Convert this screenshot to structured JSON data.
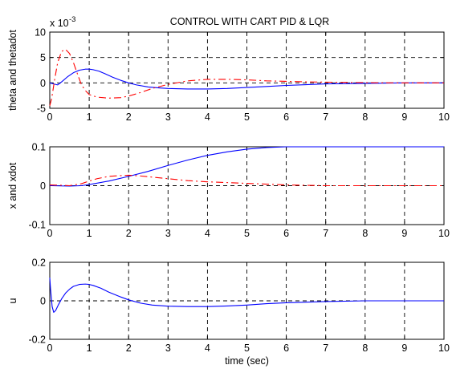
{
  "title": "CONTROL WITH CART PID & LQR",
  "colors": {
    "solid_series": "#0000ff",
    "dashed_series": "#ff0000",
    "grid": "#000000",
    "background": "#ffffff"
  },
  "chart_data": [
    {
      "type": "line",
      "title": "CONTROL WITH CART PID & LQR",
      "xlabel": "",
      "ylabel": "theta and thetadot",
      "exponent_label": "x 10",
      "exponent_power": "-3",
      "xlim": [
        0,
        10
      ],
      "ylim": [
        -5,
        10
      ],
      "xticks": [
        "0",
        "1",
        "2",
        "3",
        "4",
        "5",
        "6",
        "7",
        "8",
        "9",
        "10"
      ],
      "yticks": [
        "-5",
        "0",
        "5",
        "10"
      ],
      "grid": true,
      "series": [
        {
          "color": "#0000ff",
          "style": "solid",
          "x": [
            0,
            0.1,
            0.2,
            0.3,
            0.45,
            0.6,
            0.75,
            0.9,
            1.0,
            1.1,
            1.25,
            1.4,
            1.6,
            1.8,
            2.0,
            2.2,
            2.5,
            2.8,
            3.0,
            3.5,
            4.0,
            4.5,
            5.0,
            5.5,
            6.0,
            6.5,
            7.0,
            8.0,
            9.0,
            10.0
          ],
          "y": [
            0,
            -0.2,
            -0.4,
            0.2,
            1.2,
            2.0,
            2.5,
            2.7,
            2.7,
            2.6,
            2.3,
            1.8,
            1.1,
            0.5,
            0.0,
            -0.4,
            -0.8,
            -1.0,
            -1.1,
            -1.2,
            -1.2,
            -1.1,
            -0.9,
            -0.7,
            -0.5,
            -0.35,
            -0.2,
            -0.1,
            0,
            0
          ]
        },
        {
          "color": "#ff0000",
          "style": "dashed",
          "x": [
            0,
            0.05,
            0.12,
            0.2,
            0.3,
            0.4,
            0.5,
            0.6,
            0.7,
            0.8,
            0.9,
            1.0,
            1.2,
            1.5,
            1.8,
            2.0,
            2.3,
            2.6,
            3.0,
            3.5,
            4.0,
            4.5,
            5.0,
            5.5,
            6.0,
            6.5,
            7.0,
            7.5,
            8.0,
            9.0,
            10.0
          ],
          "y": [
            -4.5,
            -3.0,
            0.5,
            4.0,
            6.2,
            6.6,
            5.8,
            4.0,
            1.8,
            -0.3,
            -1.5,
            -2.3,
            -2.8,
            -3.0,
            -2.9,
            -2.6,
            -1.9,
            -1.1,
            -0.3,
            0.4,
            0.7,
            0.7,
            0.6,
            0.4,
            0.3,
            0.2,
            0.15,
            0.1,
            0.05,
            0,
            0
          ]
        }
      ]
    },
    {
      "type": "line",
      "xlabel": "",
      "ylabel": "x and xdot",
      "xlim": [
        0,
        10
      ],
      "ylim": [
        -0.1,
        0.1
      ],
      "xticks": [
        "0",
        "1",
        "2",
        "3",
        "4",
        "5",
        "6",
        "7",
        "8",
        "9",
        "10"
      ],
      "yticks": [
        "-0.1",
        "0",
        "0.1"
      ],
      "grid": true,
      "series": [
        {
          "color": "#0000ff",
          "style": "solid",
          "x": [
            0,
            0.5,
            0.8,
            1.0,
            1.5,
            2.0,
            2.5,
            3.0,
            3.5,
            4.0,
            4.5,
            5.0,
            5.5,
            6.0,
            6.5,
            7.0,
            8.0,
            9.0,
            10.0
          ],
          "y": [
            0,
            -0.001,
            0.0,
            0.003,
            0.012,
            0.024,
            0.037,
            0.052,
            0.066,
            0.078,
            0.087,
            0.094,
            0.098,
            0.1,
            0.1,
            0.1,
            0.1,
            0.1,
            0.1
          ]
        },
        {
          "color": "#ff0000",
          "style": "dashed",
          "x": [
            0,
            0.3,
            0.5,
            0.8,
            1.0,
            1.2,
            1.5,
            1.8,
            2.0,
            2.3,
            2.6,
            3.0,
            3.5,
            4.0,
            4.5,
            5.0,
            5.5,
            6.0,
            6.5,
            7.0,
            8.0,
            9.0,
            10.0
          ],
          "y": [
            0.002,
            0.001,
            0.0,
            0.005,
            0.012,
            0.018,
            0.024,
            0.026,
            0.027,
            0.025,
            0.022,
            0.018,
            0.013,
            0.01,
            0.008,
            0.006,
            0.004,
            0.002,
            0.001,
            0,
            0,
            0,
            0
          ]
        }
      ]
    },
    {
      "type": "line",
      "xlabel": "time (sec)",
      "ylabel": "u",
      "xlim": [
        0,
        10
      ],
      "ylim": [
        -0.2,
        0.2
      ],
      "xticks": [
        "0",
        "1",
        "2",
        "3",
        "4",
        "5",
        "6",
        "7",
        "8",
        "9",
        "10"
      ],
      "yticks": [
        "-0.2",
        "0",
        "0.2"
      ],
      "grid": true,
      "series": [
        {
          "color": "#0000ff",
          "style": "solid",
          "x": [
            0,
            0.02,
            0.06,
            0.1,
            0.15,
            0.22,
            0.3,
            0.4,
            0.5,
            0.6,
            0.75,
            0.9,
            1.0,
            1.1,
            1.3,
            1.5,
            1.8,
            2.0,
            2.3,
            2.6,
            3.0,
            3.5,
            4.0,
            4.5,
            5.0,
            5.5,
            6.0,
            7.0,
            8.0,
            9.0,
            10.0
          ],
          "y": [
            0.12,
            0.06,
            -0.03,
            -0.06,
            -0.05,
            -0.02,
            0.01,
            0.04,
            0.06,
            0.075,
            0.085,
            0.087,
            0.085,
            0.08,
            0.065,
            0.045,
            0.02,
            0.005,
            -0.012,
            -0.022,
            -0.028,
            -0.03,
            -0.03,
            -0.027,
            -0.022,
            -0.015,
            -0.01,
            -0.004,
            0,
            0,
            0
          ]
        }
      ]
    }
  ]
}
